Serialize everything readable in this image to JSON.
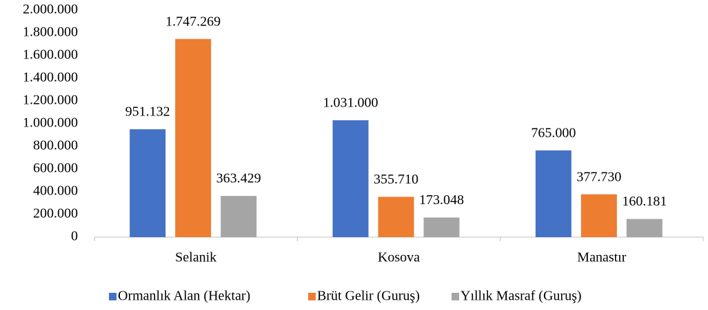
{
  "chart_data": {
    "type": "bar",
    "categories": [
      "Selanik",
      "Kosova",
      "Manastır"
    ],
    "series": [
      {
        "name": "Ormanlık Alan (Hektar)",
        "color": "#4472c4",
        "values": [
          951132,
          1031000,
          765000
        ],
        "value_labels": [
          "951.132",
          "1.031.000",
          "765.000"
        ]
      },
      {
        "name": "Brüt Gelir (Guruş)",
        "color": "#ed7d31",
        "values": [
          1747269,
          355710,
          377730
        ],
        "value_labels": [
          "1.747.269",
          "355.710",
          "377.730"
        ]
      },
      {
        "name": "Yıllık Masraf (Guruş)",
        "color": "#a5a5a5",
        "values": [
          363429,
          173048,
          160181
        ],
        "value_labels": [
          "363.429",
          "173.048",
          "160.181"
        ]
      }
    ],
    "ylim": [
      0,
      2000000
    ],
    "yticks": [
      0,
      {
        "value": 200000,
        "label": "200.000"
      },
      {
        "value": 400000,
        "label": "400.000"
      },
      {
        "value": 600000,
        "label": "600.000"
      },
      {
        "value": 800000,
        "label": "800.000"
      },
      {
        "value": 1000000,
        "label": "1.000.000"
      },
      {
        "value": 1200000,
        "label": "1.200.000"
      },
      {
        "value": 1400000,
        "label": "1.400.000"
      },
      {
        "value": 1600000,
        "label": "1.600.000"
      },
      {
        "value": 1800000,
        "label": "1.800.000"
      },
      {
        "value": 2000000,
        "label": "2.000.000"
      }
    ],
    "grid": false,
    "legend": "bottom"
  }
}
